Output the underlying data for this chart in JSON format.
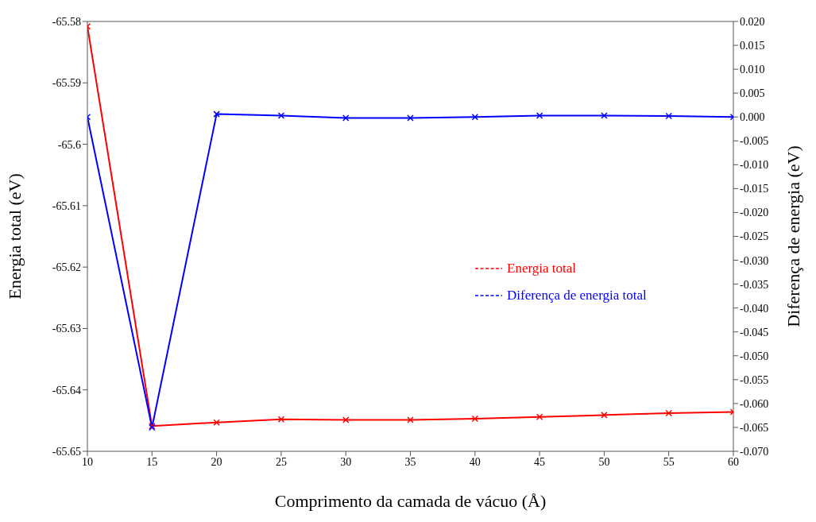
{
  "chart_data": {
    "type": "line",
    "xlabel": "Comprimento da camada de vácuo (Å)",
    "ylabel": "Energia total (eV)",
    "y2label": "Diferença de energia (eV)",
    "x": [
      10,
      15,
      20,
      25,
      30,
      35,
      40,
      45,
      50,
      55,
      60
    ],
    "series": [
      {
        "name": "Energia total",
        "color": "#ff0000",
        "marker": "cross",
        "values": [
          -65.5808,
          -65.6459,
          -65.6453,
          -65.6448,
          -65.6449,
          -65.6449,
          -65.6447,
          -65.6444,
          -65.6441,
          -65.6438,
          -65.6436
        ]
      },
      {
        "name": "Diferença de energia total",
        "color": "#0000ff",
        "axis": "y2",
        "marker": "cross",
        "values": [
          0.0,
          -0.065,
          0.0006,
          0.0003,
          -0.0002,
          -0.0002,
          0.0,
          0.0003,
          0.0003,
          0.0002,
          0.0
        ]
      }
    ],
    "xlim": [
      10,
      60
    ],
    "xticks": [
      10,
      15,
      20,
      25,
      30,
      35,
      40,
      45,
      50,
      55,
      60
    ],
    "ylim": [
      -65.65,
      -65.58
    ],
    "yticks": [
      -65.65,
      -65.64,
      -65.63,
      -65.62,
      -65.61,
      {
        "value": -65.6,
        "label": "-65.6"
      },
      -65.59,
      -65.58
    ],
    "y2lim": [
      -0.07,
      0.02
    ],
    "y2ticks": [
      {
        "value": -0.07,
        "label": "-0.070"
      },
      -0.065,
      {
        "value": -0.06,
        "label": "-0.060"
      },
      -0.055,
      {
        "value": -0.05,
        "label": "-0.050"
      },
      -0.045,
      {
        "value": -0.04,
        "label": "-0.040"
      },
      -0.035,
      {
        "value": -0.03,
        "label": "-0.030"
      },
      -0.025,
      {
        "value": -0.02,
        "label": "-0.020"
      },
      -0.015,
      {
        "value": -0.01,
        "label": "-0.010"
      },
      -0.005,
      {
        "value": 0,
        "label": "0.000"
      },
      0.005,
      {
        "value": 0.01,
        "label": "0.010"
      },
      0.015,
      {
        "value": 0.02,
        "label": "0.020"
      }
    ],
    "legend": "right",
    "grid": false,
    "line_style": "solid"
  }
}
